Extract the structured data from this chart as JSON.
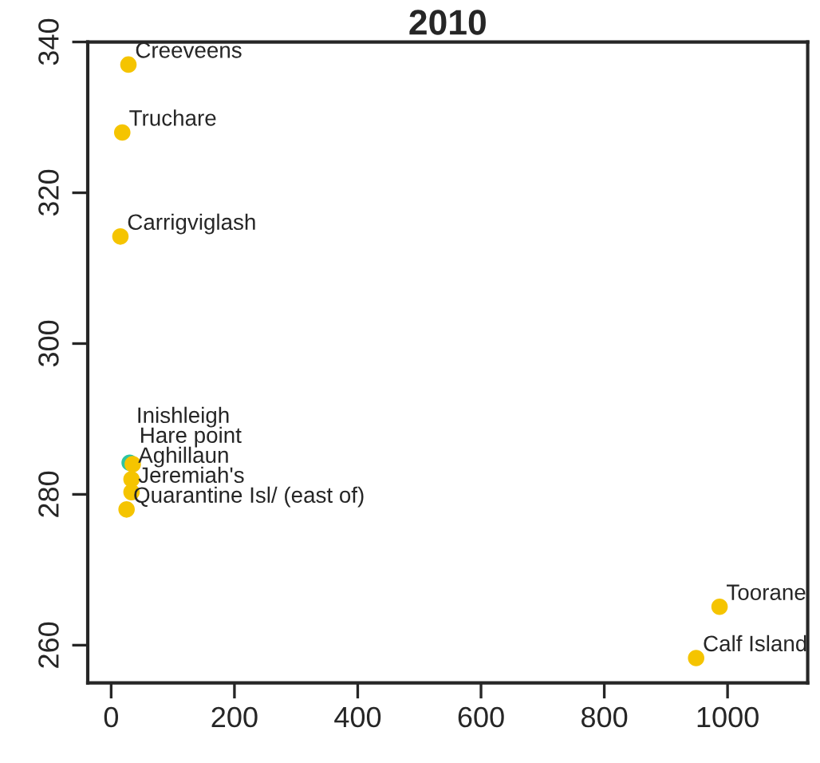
{
  "chart_data": {
    "type": "scatter",
    "title": "2010",
    "x": [
      28,
      18,
      15,
      30,
      35,
      33,
      33,
      25,
      987,
      949
    ],
    "values": [
      337.0,
      328.0,
      314.2,
      284.2,
      284.0,
      282.0,
      280.3,
      278.0,
      265.1,
      258.3
    ],
    "colors": [
      "#f5c400",
      "#f5c400",
      "#f5c400",
      "#2ec4a0",
      "#f5c400",
      "#f5c400",
      "#f5c400",
      "#f5c400",
      "#f5c400",
      "#f5c400"
    ],
    "value_labels": [
      "Creeveens",
      "Truchare",
      "Carrigviglash",
      "Inishleigh",
      "Hare point",
      "Aghillaun",
      "Jeremiah's",
      "Quarantine Isl/ (east of)",
      "Toorane",
      "Calf Island"
    ],
    "xlim": [
      -38,
      1130
    ],
    "ylim": [
      255,
      340
    ],
    "xticks": [
      0,
      200,
      400,
      600,
      800,
      1000
    ],
    "yticks": [
      260,
      280,
      300,
      320,
      340
    ],
    "grid": false,
    "marker": "circle"
  }
}
